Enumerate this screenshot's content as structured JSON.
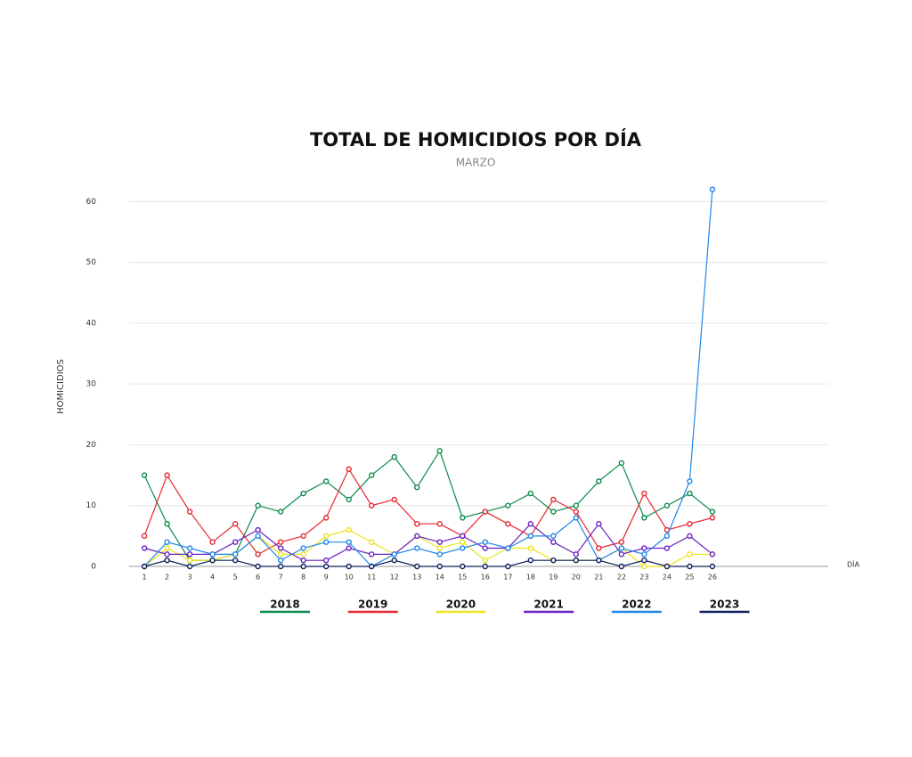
{
  "chart_data": {
    "type": "line",
    "title": "TOTAL DE HOMICIDIOS POR DÍA",
    "subtitle": "MARZO",
    "y_label": "HOMICIDIOS",
    "x_label": "DÍA",
    "x": [
      1,
      2,
      3,
      4,
      5,
      6,
      7,
      8,
      9,
      10,
      11,
      12,
      13,
      14,
      15,
      16,
      17,
      18,
      19,
      20,
      21,
      22,
      23,
      24,
      25,
      26
    ],
    "xlim": [
      0.33,
      31.1
    ],
    "xticks": [
      1,
      2,
      3,
      4,
      5,
      6,
      7,
      8,
      9,
      10,
      11,
      12,
      13,
      14,
      15,
      16,
      17,
      18,
      19,
      20,
      21,
      22,
      23,
      24,
      25,
      26
    ],
    "ylim": [
      0,
      64
    ],
    "yticks": [
      0,
      10,
      20,
      30,
      40,
      50,
      60
    ],
    "grid": true,
    "legend": "bottom",
    "series": [
      {
        "name": "2018",
        "color": "#0a8a4a",
        "values": [
          15,
          7,
          1,
          1,
          2,
          10,
          9,
          12,
          14,
          11,
          15,
          18,
          13,
          19,
          8,
          9,
          10,
          12,
          9,
          10,
          14,
          17,
          8,
          10,
          12,
          9
        ]
      },
      {
        "name": "2019",
        "color": "#e8262f",
        "values": [
          5,
          15,
          9,
          4,
          7,
          2,
          4,
          5,
          8,
          16,
          10,
          11,
          7,
          7,
          5,
          9,
          7,
          5,
          11,
          9,
          3,
          4,
          12,
          6,
          7,
          8
        ]
      },
      {
        "name": "2020",
        "color": "#ece31a",
        "values": [
          0,
          3,
          1,
          1,
          2,
          5,
          2,
          2,
          5,
          6,
          4,
          2,
          5,
          3,
          4,
          1,
          3,
          3,
          1,
          1,
          1,
          3,
          0,
          0,
          2,
          2
        ]
      },
      {
        "name": "2021",
        "color": "#6a1fc0",
        "values": [
          3,
          2,
          2,
          2,
          4,
          6,
          3,
          1,
          1,
          3,
          2,
          2,
          5,
          4,
          5,
          3,
          3,
          7,
          4,
          2,
          7,
          2,
          3,
          3,
          5,
          2
        ]
      },
      {
        "name": "2022",
        "color": "#1f86e8",
        "values": [
          0,
          4,
          3,
          2,
          2,
          5,
          1,
          3,
          4,
          4,
          0,
          2,
          3,
          2,
          3,
          4,
          3,
          5,
          5,
          8,
          1,
          3,
          2,
          5,
          14,
          62
        ]
      },
      {
        "name": "2023",
        "color": "#0a1f5c",
        "values": [
          0,
          1,
          0,
          1,
          1,
          0,
          0,
          0,
          0,
          0,
          0,
          1,
          0,
          0,
          0,
          0,
          0,
          1,
          1,
          1,
          1,
          0,
          1,
          0,
          0,
          0
        ]
      }
    ]
  }
}
